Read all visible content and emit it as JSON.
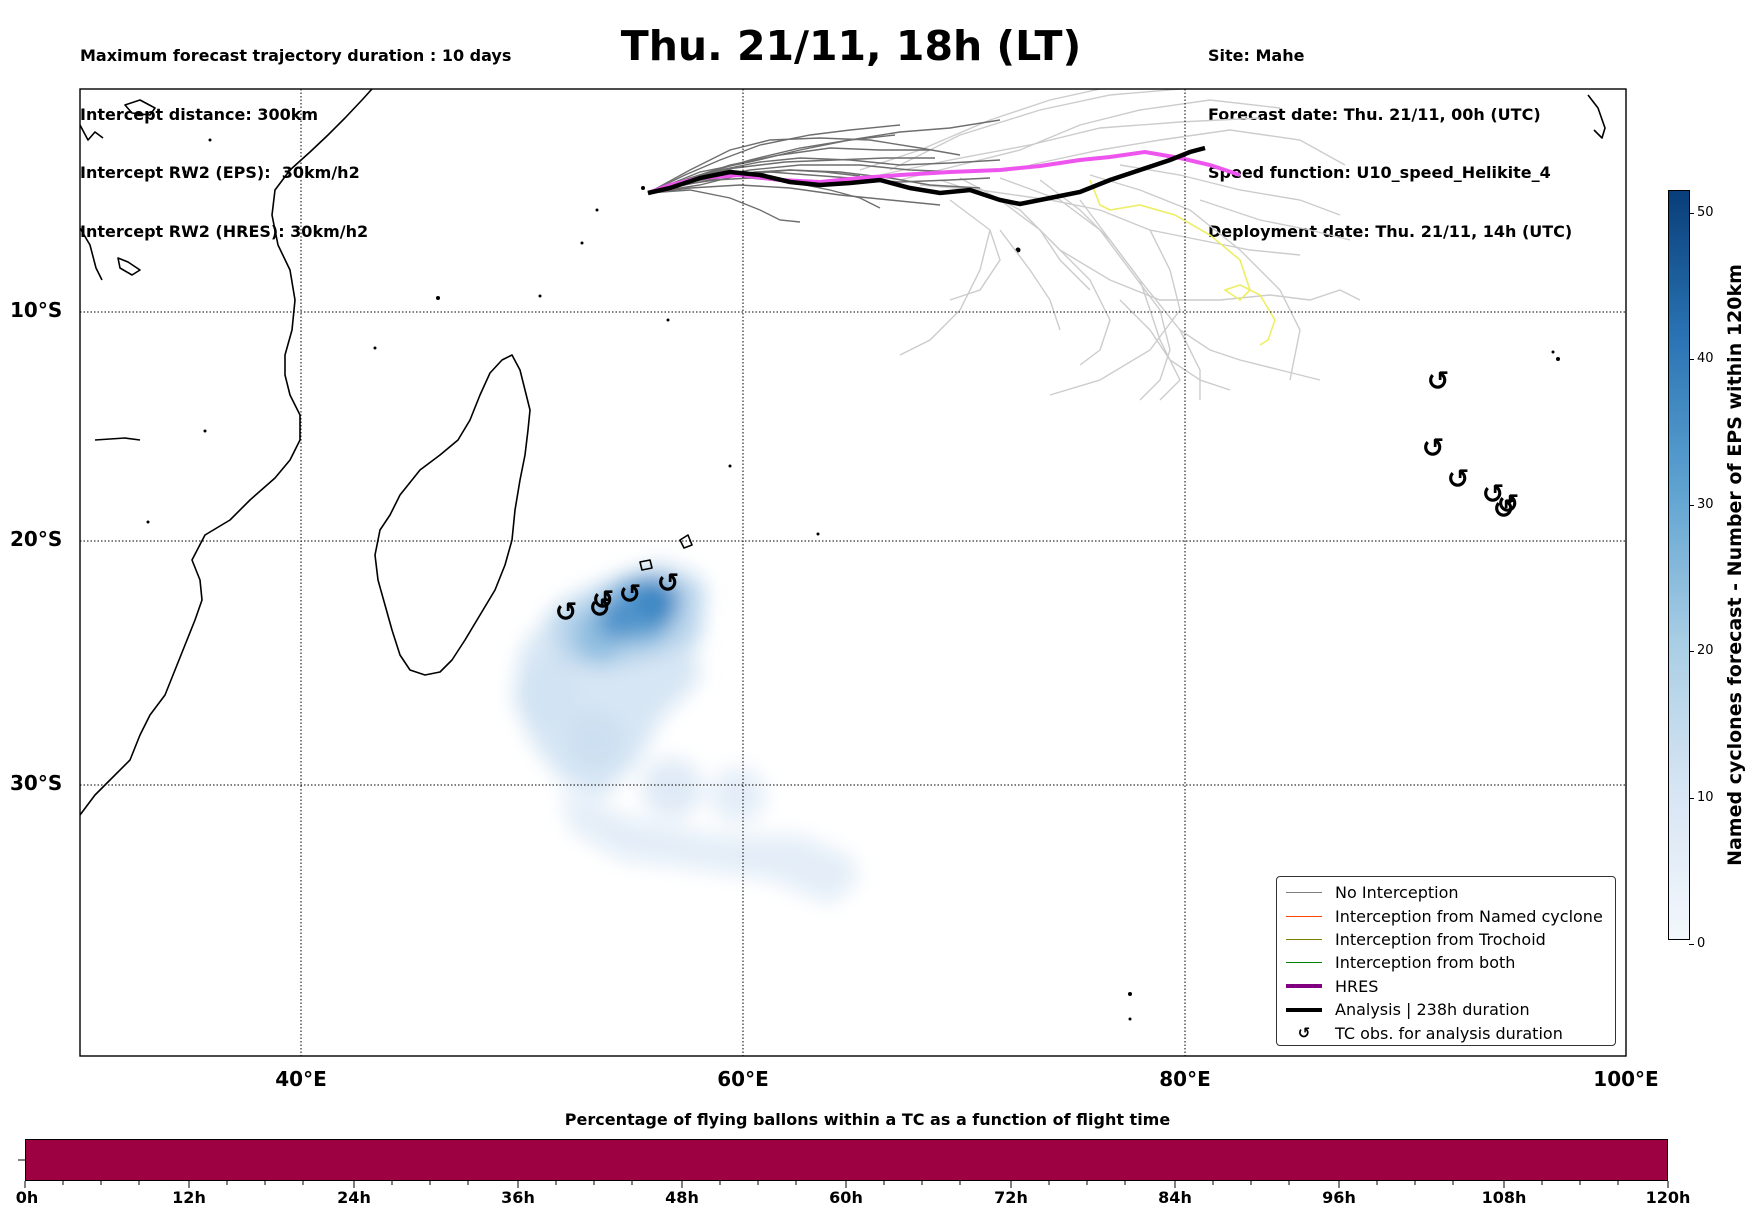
{
  "header": {
    "left_lines": [
      "Maximum forecast trajectory duration : 10 days",
      "Intercept distance: 300km",
      "Intercept RW2 (EPS):  30km/h2",
      "Intercept RW2 (HRES): 30km/h2"
    ],
    "title": "Thu. 21/11, 18h (LT)",
    "right_lines": [
      "Site: Mahe",
      "Forecast date: Thu. 21/11, 00h (UTC)",
      "Speed function: U10_speed_Helikite_4",
      "Deployment date: Thu. 21/11, 14h (UTC)"
    ]
  },
  "map": {
    "lat_labels": [
      "10°S",
      "20°S",
      "30°S"
    ],
    "lon_labels": [
      "40°E",
      "60°E",
      "80°E",
      "100°E"
    ],
    "gridlines": true,
    "colors": {
      "no_interception": "#808080",
      "named_cyclone": "#ff4500",
      "trochoid": "#808000",
      "both": "#008000",
      "hres": "#ee55ee",
      "analysis": "#000000",
      "late_tracks": "#cccccc",
      "yellow_track": "#eeee66"
    }
  },
  "colorbar": {
    "label": "Named cyclones forecast - Number of EPS within 120km",
    "ticks": [
      "0",
      "10",
      "20",
      "30",
      "40",
      "50"
    ]
  },
  "legend": {
    "items": [
      {
        "label": "No Interception",
        "style": "thin",
        "color": "#808080"
      },
      {
        "label": "Interception from Named cyclone",
        "style": "thin",
        "color": "#ff4500"
      },
      {
        "label": "Interception from Trochoid",
        "style": "thin",
        "color": "#808000"
      },
      {
        "label": "Interception from both",
        "style": "thin",
        "color": "#008000"
      },
      {
        "label": "HRES",
        "style": "thick",
        "color": "#800080"
      },
      {
        "label": "Analysis | 238h duration",
        "style": "thick",
        "color": "#000000"
      },
      {
        "label": "TC obs. for analysis duration",
        "style": "symbol",
        "symbol": "↺"
      }
    ]
  },
  "tc_symbol": "↺",
  "bottom": {
    "title": "Percentage of flying ballons within a TC as a function of flight time",
    "bar_color": "#9e0142",
    "time_labels": [
      "0h",
      "12h",
      "24h",
      "36h",
      "48h",
      "60h",
      "72h",
      "84h",
      "96h",
      "108h",
      "120h"
    ]
  }
}
